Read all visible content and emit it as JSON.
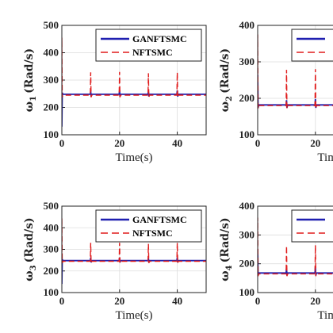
{
  "chart_data": [
    {
      "type": "line",
      "ylabel_symbol": "ω",
      "ylabel_sub": "1",
      "ylabel_unit": "(Rad/s)",
      "xlabel": "Time(s)",
      "xlim": [
        0,
        50
      ],
      "ylim": [
        100,
        500
      ],
      "yticks": [
        "100",
        "200",
        "300",
        "400",
        "500"
      ],
      "xticks": [
        "0",
        "20",
        "40"
      ],
      "grid": true,
      "legend": "top-right",
      "series": [
        {
          "name": "GANFTSMC",
          "color": "#1f1fb0",
          "style": "solid",
          "baseline": 248,
          "events": [
            {
              "x": 0,
              "y": 130
            },
            {
              "x": 10,
              "y": 258
            },
            {
              "x": 20,
              "y": 262
            },
            {
              "x": 30,
              "y": 258
            },
            {
              "x": 40,
              "y": 262
            }
          ]
        },
        {
          "name": "NFTSMC",
          "color": "#e01b1b",
          "style": "dashed",
          "baseline": 245,
          "events": [
            {
              "x": 0,
              "y": 455
            },
            {
              "x": 10,
              "y": 328
            },
            {
              "x": 20,
              "y": 330
            },
            {
              "x": 30,
              "y": 325
            },
            {
              "x": 40,
              "y": 328
            }
          ]
        }
      ]
    },
    {
      "type": "line",
      "ylabel_symbol": "ω",
      "ylabel_sub": "2",
      "ylabel_unit": "(Rad/s)",
      "xlabel": "Time",
      "xlim": [
        0,
        50
      ],
      "ylim": [
        100,
        400
      ],
      "yticks": [
        "100",
        "200",
        "300",
        "400"
      ],
      "xticks": [
        "0",
        "20"
      ],
      "grid": true,
      "legend": "top-right",
      "series": [
        {
          "name": "",
          "color": "#1f1fb0",
          "style": "solid",
          "baseline": 182,
          "events": [
            {
              "x": 0,
              "y": 265
            },
            {
              "x": 10,
              "y": 195
            },
            {
              "x": 20,
              "y": 198
            }
          ]
        },
        {
          "name": "",
          "color": "#e01b1b",
          "style": "dashed",
          "baseline": 180,
          "events": [
            {
              "x": 0,
              "y": 375
            },
            {
              "x": 10,
              "y": 278
            },
            {
              "x": 20,
              "y": 280
            }
          ]
        }
      ]
    },
    {
      "type": "line",
      "ylabel_symbol": "ω",
      "ylabel_sub": "3",
      "ylabel_unit": "(Rad/s)",
      "xlabel": "Time(s)",
      "xlim": [
        0,
        50
      ],
      "ylim": [
        100,
        500
      ],
      "yticks": [
        "100",
        "200",
        "300",
        "400",
        "500"
      ],
      "xticks": [
        "0",
        "20",
        "40"
      ],
      "grid": true,
      "legend": "top-right",
      "series": [
        {
          "name": "GANFTSMC",
          "color": "#1f1fb0",
          "style": "solid",
          "baseline": 248,
          "events": [
            {
              "x": 0,
              "y": 140
            },
            {
              "x": 10,
              "y": 262
            },
            {
              "x": 20,
              "y": 262
            },
            {
              "x": 30,
              "y": 258
            },
            {
              "x": 40,
              "y": 262
            }
          ]
        },
        {
          "name": "NFTSMC",
          "color": "#e01b1b",
          "style": "dashed",
          "baseline": 245,
          "events": [
            {
              "x": 0,
              "y": 445
            },
            {
              "x": 10,
              "y": 330
            },
            {
              "x": 20,
              "y": 330
            },
            {
              "x": 30,
              "y": 325
            },
            {
              "x": 40,
              "y": 330
            }
          ]
        }
      ]
    },
    {
      "type": "line",
      "ylabel_symbol": "ω",
      "ylabel_sub": "4",
      "ylabel_unit": "(Rad/s)",
      "xlabel": "Time",
      "xlim": [
        0,
        50
      ],
      "ylim": [
        100,
        400
      ],
      "yticks": [
        "100",
        "200",
        "300",
        "400"
      ],
      "xticks": [
        "0",
        "20"
      ],
      "grid": true,
      "legend": "top-right",
      "series": [
        {
          "name": "",
          "color": "#1f1fb0",
          "style": "solid",
          "baseline": 168,
          "events": [
            {
              "x": 0,
              "y": 250
            },
            {
              "x": 10,
              "y": 185
            },
            {
              "x": 20,
              "y": 190
            }
          ]
        },
        {
          "name": "",
          "color": "#e01b1b",
          "style": "dashed",
          "baseline": 165,
          "events": [
            {
              "x": 0,
              "y": 360
            },
            {
              "x": 10,
              "y": 262
            },
            {
              "x": 20,
              "y": 265
            }
          ]
        }
      ]
    }
  ]
}
